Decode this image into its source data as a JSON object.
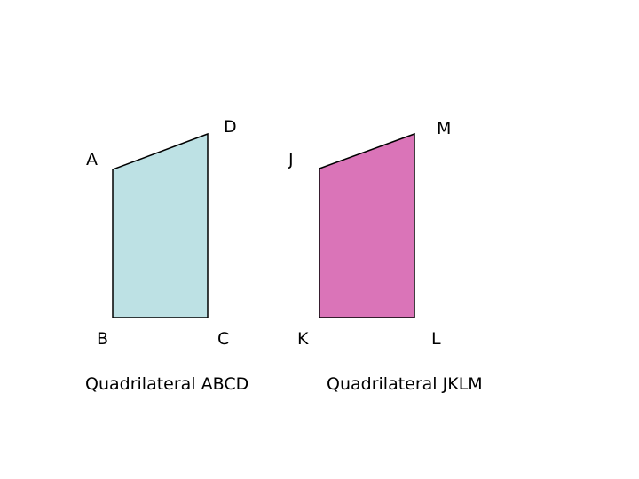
{
  "shapes": [
    {
      "name": "ABCD",
      "caption": "Quadrilateral ABCD",
      "fill": "#bde1e4",
      "vertices": {
        "a": "A",
        "b": "B",
        "c": "C",
        "d": "D"
      }
    },
    {
      "name": "JKLM",
      "caption": "Quadrilateral JKLM",
      "fill": "#da74b8",
      "vertices": {
        "a": "J",
        "b": "K",
        "c": "L",
        "d": "M"
      }
    }
  ],
  "colors": {
    "stroke": "#000000",
    "background": "#ffffff"
  }
}
